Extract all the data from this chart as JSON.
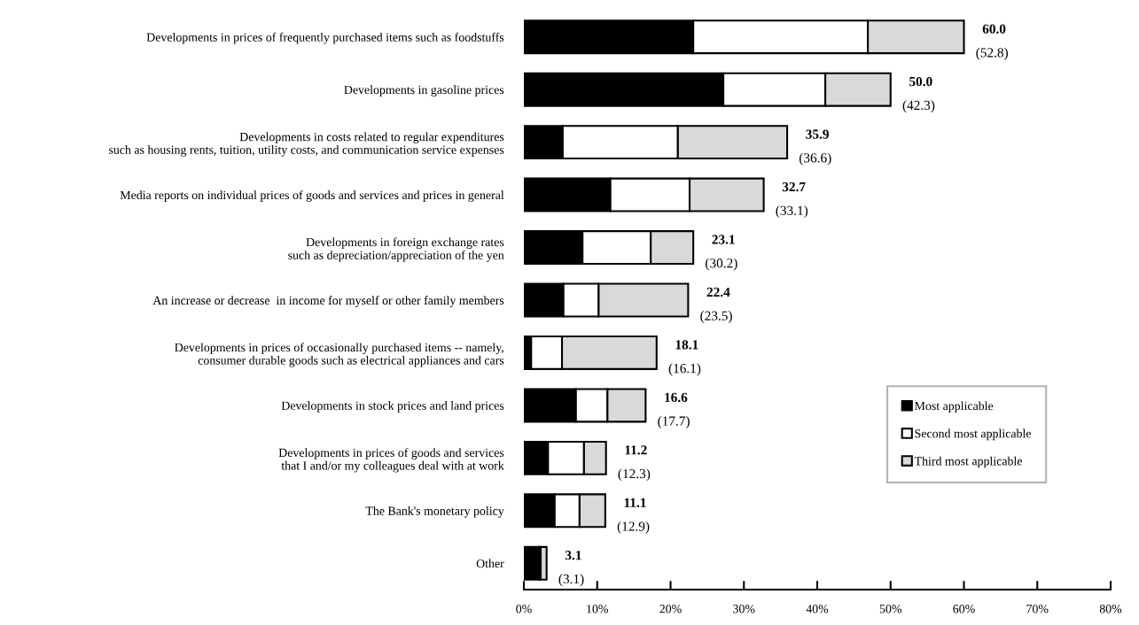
{
  "chart_data": {
    "type": "bar",
    "orientation": "horizontal",
    "stacked": true,
    "categories": [
      "Developments in prices of frequently purchased items such as foodstuffs",
      "Developments in gasoline prices",
      "Developments in costs related to regular expenditures\nsuch as housing rents, tuition, utility costs, and communication service expenses",
      "Media reports on individual prices of goods and services and prices in general",
      "Developments in foreign exchange rates\nsuch as depreciation/appreciation of the yen",
      "An increase or decrease  in income for myself or other family members",
      "Developments in prices of occasionally purchased items -- namely,\nconsumer durable goods such as electrical appliances and cars",
      "Developments in stock prices and land prices",
      "Developments in prices of goods and services\nthat I and/or my colleagues deal with at work",
      "The Bank's monetary policy",
      "Other"
    ],
    "series": [
      {
        "name": "Most applicable",
        "color": "#000000",
        "values": [
          23.1,
          27.2,
          5.3,
          11.8,
          8.0,
          5.4,
          1.0,
          7.1,
          3.3,
          4.2,
          2.1
        ]
      },
      {
        "name": "Second most applicable",
        "color": "#ffffff",
        "values": [
          23.8,
          13.9,
          15.7,
          10.8,
          9.3,
          4.8,
          4.2,
          4.3,
          4.9,
          3.4,
          0.2
        ]
      },
      {
        "name": "Third most applicable",
        "color": "#d9d9d9",
        "values": [
          13.1,
          8.9,
          14.9,
          10.1,
          5.8,
          12.2,
          12.9,
          5.2,
          3.0,
          3.5,
          0.8
        ]
      }
    ],
    "totals": [
      "60.0",
      "50.0",
      "35.9",
      "32.7",
      "23.1",
      "22.4",
      "18.1",
      "16.6",
      "11.2",
      "11.1",
      "3.1"
    ],
    "annotations": [
      {
        "text": "(52.8)",
        "x": 60.0,
        "y": "Developments in prices of frequently purchased items such as foodstuffs"
      },
      {
        "text": "(42.3)",
        "x": 50.0,
        "y": "Developments in gasoline prices"
      },
      {
        "text": "(36.6)",
        "x": 35.9,
        "y": "Developments in costs related to regular expenditures\nsuch as housing rents, tuition, utility costs, and communication service expenses"
      },
      {
        "text": "(33.1)",
        "x": 32.7,
        "y": "Media reports on individual prices of goods and services and prices in general"
      },
      {
        "text": "(30.2)",
        "x": 23.1,
        "y": "Developments in foreign exchange rates\nsuch as depreciation/appreciation of the yen"
      },
      {
        "text": "(23.5)",
        "x": 22.4,
        "y": "An increase or decrease  in income for myself or other family members"
      },
      {
        "text": "(16.1)",
        "x": 18.1,
        "y": "Developments in prices of occasionally purchased items -- namely,\nconsumer durable goods such as electrical appliances and cars"
      },
      {
        "text": "(17.7)",
        "x": 16.6,
        "y": "Developments in stock prices and land prices"
      },
      {
        "text": "(12.3)",
        "x": 11.2,
        "y": "Developments in prices of goods and services\nthat I and/or my colleagues deal with at work"
      },
      {
        "text": "(12.9)",
        "x": 11.1,
        "y": "The Bank's monetary policy"
      },
      {
        "text": "(3.1)",
        "x": 3.1,
        "y": "Other"
      }
    ],
    "xlim": [
      0,
      80
    ],
    "xticks": [
      {
        "value": 0,
        "label": "0%"
      },
      {
        "value": 10,
        "label": "10%"
      },
      {
        "value": 20,
        "label": "20%"
      },
      {
        "value": 30,
        "label": "30%"
      },
      {
        "value": 40,
        "label": "40%"
      },
      {
        "value": 50,
        "label": "50%"
      },
      {
        "value": 60,
        "label": "60%"
      },
      {
        "value": 70,
        "label": "70%"
      },
      {
        "value": 80,
        "label": "80%"
      }
    ],
    "legend": "bottom right",
    "grid": false
  }
}
